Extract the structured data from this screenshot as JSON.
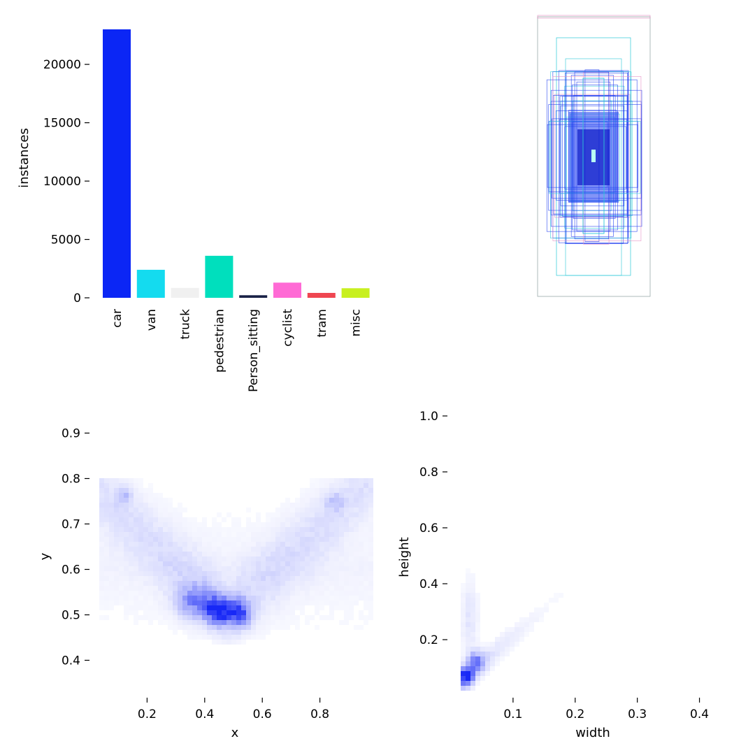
{
  "chart_data": [
    {
      "type": "bar",
      "panel": "top-left",
      "title": "",
      "xlabel": "",
      "ylabel": "instances",
      "ylim": [
        0,
        24000
      ],
      "yticks": [
        0,
        5000,
        10000,
        15000,
        20000
      ],
      "yticklabels": [
        "0",
        "5000",
        "10000",
        "15000",
        "20000"
      ],
      "categories": [
        "car",
        "van",
        "truck",
        "pedestrian",
        "Person_sitting",
        "cyclist",
        "tram",
        "misc"
      ],
      "values": [
        23000,
        2400,
        850,
        3600,
        220,
        1300,
        420,
        820
      ],
      "colors": [
        "#0b26f5",
        "#14dbef",
        "#f0f0f0",
        "#00dfbd",
        "#1a2247",
        "#ff6ad5",
        "#ef4651",
        "#c8f01f"
      ],
      "grid": false
    },
    {
      "type": "other",
      "panel": "top-right",
      "description_label": "",
      "kind": "bounding-box-overlay",
      "box_count": 36,
      "dominant_colors": [
        "#1e3cf0",
        "#2bc8d8",
        "#e38bc0"
      ]
    },
    {
      "type": "heatmap",
      "panel": "bottom-left",
      "xlabel": "x",
      "ylabel": "y",
      "xlim": [
        0,
        1
      ],
      "ylim": [
        0.33,
        0.93
      ],
      "xticks": [
        0.2,
        0.4,
        0.6,
        0.8
      ],
      "xticklabels": [
        "0.2",
        "0.4",
        "0.6",
        "0.8"
      ],
      "yticks": [
        0.4,
        0.5,
        0.6,
        0.7,
        0.8,
        0.9
      ],
      "yticklabels": [
        "0.4",
        "0.5",
        "0.6",
        "0.7",
        "0.8",
        "0.9"
      ],
      "color": "#0b1cf5",
      "hotspots": [
        {
          "x": 0.45,
          "y": 0.51,
          "strength": 1.0
        },
        {
          "x": 0.52,
          "y": 0.51,
          "strength": 0.8
        },
        {
          "x": 0.38,
          "y": 0.53,
          "strength": 0.55
        },
        {
          "x": 0.12,
          "y": 0.76,
          "strength": 0.25
        },
        {
          "x": 0.85,
          "y": 0.75,
          "strength": 0.2
        }
      ]
    },
    {
      "type": "heatmap",
      "panel": "bottom-right",
      "xlabel": "width",
      "ylabel": "height",
      "xlim": [
        0,
        0.45
      ],
      "ylim": [
        0.0,
        1.05
      ],
      "xticks": [
        0.1,
        0.2,
        0.3,
        0.4
      ],
      "xticklabels": [
        "0.1",
        "0.2",
        "0.3",
        "0.4"
      ],
      "yticks": [
        0.2,
        0.4,
        0.6,
        0.8,
        1.0
      ],
      "yticklabels": [
        "0.2",
        "0.4",
        "0.6",
        "0.8",
        "1.0"
      ],
      "color": "#0b1cf5",
      "hotspots": [
        {
          "x": 0.025,
          "y": 0.08,
          "strength": 1.0
        },
        {
          "x": 0.04,
          "y": 0.12,
          "strength": 0.6
        }
      ]
    }
  ]
}
